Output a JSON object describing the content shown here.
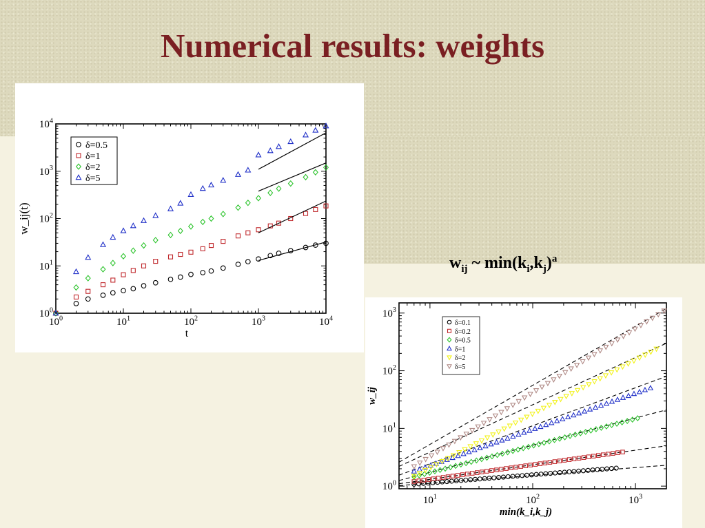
{
  "slide": {
    "title": "Numerical results: weights",
    "formula": {
      "w": "w",
      "w_sub": "ij",
      "mid": " ~ min(k",
      "i": "i",
      "comma": ",k",
      "j": "j",
      "close": ")",
      "a": "a"
    }
  },
  "colors": {
    "title": "#7a1f22",
    "black": "#000000",
    "red": "#c0282c",
    "green": "#2ec42e",
    "blue": "#2030c8",
    "yellow": "#f2f21a",
    "mauve": "#b08a86"
  },
  "chart_data": [
    {
      "type": "scatter",
      "title": "",
      "xlabel": "t",
      "ylabel": "w_ij(t)",
      "xscale": "log",
      "yscale": "log",
      "xlim": [
        1,
        10000
      ],
      "ylim": [
        1,
        10000
      ],
      "xticks": [
        {
          "base": "10",
          "exp": "0"
        },
        {
          "base": "10",
          "exp": "1"
        },
        {
          "base": "10",
          "exp": "2"
        },
        {
          "base": "10",
          "exp": "3"
        },
        {
          "base": "10",
          "exp": "4"
        }
      ],
      "yticks": [
        {
          "base": "10",
          "exp": "0"
        },
        {
          "base": "10",
          "exp": "1"
        },
        {
          "base": "10",
          "exp": "2"
        },
        {
          "base": "10",
          "exp": "3"
        },
        {
          "base": "10",
          "exp": "4"
        }
      ],
      "legend_position": "top-left",
      "series": [
        {
          "name": "δ=0.5",
          "marker": "circle",
          "color": "#000000",
          "points": [
            [
              1,
              1
            ],
            [
              2,
              1.6
            ],
            [
              3,
              2.0
            ],
            [
              5,
              2.4
            ],
            [
              7,
              2.7
            ],
            [
              10,
              3.0
            ],
            [
              14,
              3.3
            ],
            [
              20,
              3.8
            ],
            [
              30,
              4.4
            ],
            [
              50,
              5.2
            ],
            [
              70,
              5.8
            ],
            [
              100,
              6.6
            ],
            [
              150,
              7.2
            ],
            [
              200,
              7.8
            ],
            [
              300,
              9.0
            ],
            [
              500,
              10.8
            ],
            [
              700,
              12.3
            ],
            [
              1000,
              14
            ],
            [
              1500,
              16.5
            ],
            [
              2000,
              18.5
            ],
            [
              3000,
              21
            ],
            [
              5000,
              24.5
            ],
            [
              7000,
              27.5
            ],
            [
              10000,
              30
            ]
          ],
          "fit": [
            [
              1000,
              13
            ],
            [
              10000,
              32
            ]
          ]
        },
        {
          "name": "δ=1",
          "marker": "square",
          "color": "#c0282c",
          "points": [
            [
              1,
              1
            ],
            [
              2,
              2.2
            ],
            [
              3,
              2.9
            ],
            [
              5,
              4.0
            ],
            [
              7,
              5.0
            ],
            [
              10,
              6.5
            ],
            [
              14,
              8.0
            ],
            [
              20,
              10
            ],
            [
              30,
              12.5
            ],
            [
              50,
              15.5
            ],
            [
              70,
              17.5
            ],
            [
              100,
              19.5
            ],
            [
              150,
              23
            ],
            [
              200,
              27
            ],
            [
              300,
              33
            ],
            [
              500,
              43
            ],
            [
              700,
              50
            ],
            [
              1000,
              58
            ],
            [
              1500,
              70
            ],
            [
              2000,
              80
            ],
            [
              3000,
              100
            ],
            [
              5000,
              128
            ],
            [
              7000,
              155
            ],
            [
              10000,
              185
            ]
          ],
          "fit": [
            [
              1000,
              50
            ],
            [
              10000,
              235
            ]
          ]
        },
        {
          "name": "δ=2",
          "marker": "diamond",
          "color": "#2ec42e",
          "points": [
            [
              1,
              1
            ],
            [
              2,
              3.5
            ],
            [
              3,
              5.5
            ],
            [
              5,
              8.5
            ],
            [
              7,
              11.5
            ],
            [
              10,
              16
            ],
            [
              14,
              21
            ],
            [
              20,
              27
            ],
            [
              30,
              35
            ],
            [
              50,
              45
            ],
            [
              70,
              55
            ],
            [
              100,
              68
            ],
            [
              150,
              85
            ],
            [
              200,
              100
            ],
            [
              300,
              125
            ],
            [
              500,
              170
            ],
            [
              700,
              215
            ],
            [
              1000,
              270
            ],
            [
              1500,
              350
            ],
            [
              2000,
              430
            ],
            [
              3000,
              550
            ],
            [
              5000,
              750
            ],
            [
              7000,
              950
            ],
            [
              10000,
              1200
            ]
          ],
          "fit": [
            [
              1000,
              380
            ],
            [
              10000,
              1500
            ]
          ]
        },
        {
          "name": "δ=5",
          "marker": "triangle",
          "color": "#2030c8",
          "points": [
            [
              1,
              1
            ],
            [
              2,
              7.5
            ],
            [
              3,
              15
            ],
            [
              5,
              28
            ],
            [
              7,
              40
            ],
            [
              10,
              55
            ],
            [
              14,
              70
            ],
            [
              20,
              90
            ],
            [
              30,
              115
            ],
            [
              50,
              160
            ],
            [
              70,
              210
            ],
            [
              100,
              320
            ],
            [
              150,
              430
            ],
            [
              200,
              510
            ],
            [
              300,
              640
            ],
            [
              500,
              850
            ],
            [
              700,
              1050
            ],
            [
              1000,
              2200
            ],
            [
              1500,
              2700
            ],
            [
              2000,
              3300
            ],
            [
              3000,
              4200
            ],
            [
              5000,
              5800
            ],
            [
              7000,
              7300
            ],
            [
              10000,
              9000
            ]
          ],
          "fit": [
            [
              1000,
              1100
            ],
            [
              10000,
              6500
            ]
          ]
        }
      ]
    },
    {
      "type": "scatter",
      "title": "",
      "xlabel": "min(k_i,k_j)",
      "ylabel": "w_ij",
      "xscale": "log",
      "yscale": "log",
      "xlim": [
        5,
        2000
      ],
      "ylim": [
        0.9,
        1500
      ],
      "xticks": [
        {
          "base": "10",
          "exp": "1"
        },
        {
          "base": "10",
          "exp": "2"
        },
        {
          "base": "10",
          "exp": "3"
        }
      ],
      "yticks": [
        {
          "base": "10",
          "exp": "0"
        },
        {
          "base": "10",
          "exp": "1"
        },
        {
          "base": "10",
          "exp": "2"
        },
        {
          "base": "10",
          "exp": "3"
        }
      ],
      "legend_position": "top-left",
      "series": [
        {
          "name": "δ=0.1",
          "marker": "circle",
          "color": "#000000",
          "x_start": 7,
          "x_end": 650,
          "y_start": 1.08,
          "y_end": 2.05,
          "fit_start": [
            5,
            1.02
          ],
          "fit_end": [
            2000,
            2.3
          ]
        },
        {
          "name": "δ=0.2",
          "marker": "square",
          "color": "#c0282c",
          "x_start": 7,
          "x_end": 750,
          "y_start": 1.2,
          "y_end": 3.9,
          "fit_start": [
            5,
            1.1
          ],
          "fit_end": [
            2000,
            5.0
          ]
        },
        {
          "name": "δ=0.5",
          "marker": "diamond",
          "color": "#2ec42e",
          "x_start": 7,
          "x_end": 1050,
          "y_start": 1.45,
          "y_end": 15,
          "fit_start": [
            5,
            1.25
          ],
          "fit_end": [
            2000,
            21
          ]
        },
        {
          "name": "δ=1",
          "marker": "triangle",
          "color": "#2030c8",
          "x_start": 7,
          "x_end": 1400,
          "y_start": 1.8,
          "y_end": 50,
          "fit_start": [
            5,
            1.55
          ],
          "fit_end": [
            2000,
            80
          ]
        },
        {
          "name": "δ=2",
          "marker": "triangle-down",
          "color": "#f2f21a",
          "x_start": 7,
          "x_end": 1600,
          "y_start": 1.5,
          "y_end": 240,
          "fit_start": [
            5,
            2.2
          ],
          "fit_end": [
            2000,
            300
          ]
        },
        {
          "name": "δ=5",
          "marker": "triangle-down",
          "color": "#b08a86",
          "x_start": 7,
          "x_end": 1900,
          "y_start": 2.2,
          "y_end": 1100,
          "fit_start": [
            5,
            2.6
          ],
          "fit_end": [
            2000,
            1200
          ]
        }
      ]
    }
  ]
}
